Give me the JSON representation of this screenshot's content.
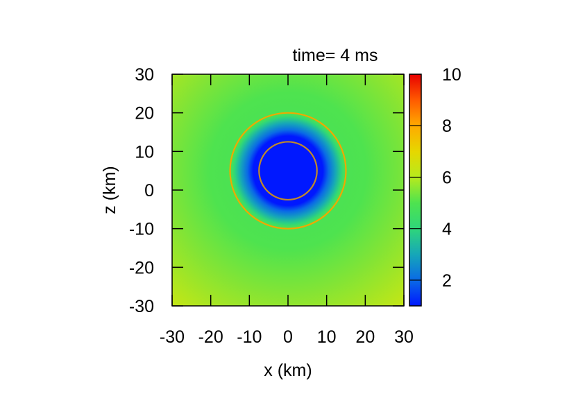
{
  "chart_data": {
    "type": "heatmap",
    "title": "time= 4 ms",
    "xlabel": "x (km)",
    "ylabel": "z (km)",
    "xlim": [
      -30,
      30
    ],
    "ylim": [
      -30,
      30
    ],
    "x_ticks": [
      "-30",
      "-20",
      "-10",
      "0",
      "10",
      "20",
      "30"
    ],
    "y_ticks": [
      "-30",
      "-20",
      "-10",
      "0",
      "10",
      "20",
      "30"
    ],
    "colorbar": {
      "range": [
        1,
        10
      ],
      "ticks": [
        "2",
        "4",
        "6",
        "8",
        "10"
      ],
      "tick_values": [
        2,
        4,
        6,
        8,
        10
      ],
      "stops": [
        {
          "value": 1,
          "color": "#0018ff"
        },
        {
          "value": 2,
          "color": "#0a6ae6"
        },
        {
          "value": 3,
          "color": "#16a7b8"
        },
        {
          "value": 4,
          "color": "#2fd67a"
        },
        {
          "value": 5,
          "color": "#4ee34f"
        },
        {
          "value": 6,
          "color": "#b7ea1d"
        },
        {
          "value": 7,
          "color": "#e6d700"
        },
        {
          "value": 8,
          "color": "#ffaa00"
        },
        {
          "value": 9,
          "color": "#ff5a00"
        },
        {
          "value": 10,
          "color": "#e80000"
        }
      ]
    },
    "field": {
      "background_value": 5.0,
      "corner_value": 5.8,
      "core": {
        "center": [
          0,
          5
        ],
        "radius": 9,
        "value": 1.0
      },
      "transition_radius": 15
    },
    "contours": [
      {
        "center": [
          0,
          5
        ],
        "radius": 15,
        "color": "#f0a800"
      },
      {
        "center": [
          0,
          5
        ],
        "radius": 7.5,
        "color": "#c08a2a"
      }
    ]
  }
}
